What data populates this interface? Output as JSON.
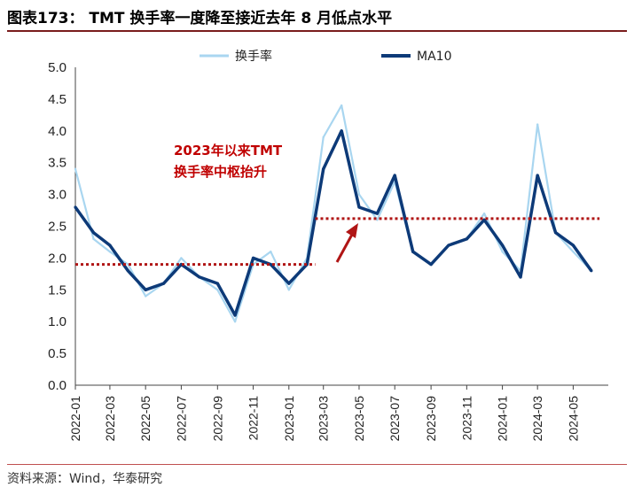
{
  "header": {
    "title": "图表173： TMT 换手率一度降至接近去年 8 月低点水平"
  },
  "footer": {
    "source": "资料来源：Wind，华泰研究"
  },
  "colors": {
    "raw": "#a9d6f0",
    "ma": "#0d3a78",
    "ref": "#b01515",
    "arrow": "#b01515",
    "accent": "#7a1c1c"
  },
  "chart_data": {
    "type": "line",
    "title": "",
    "xlabel": "",
    "ylabel": "",
    "ylim": [
      0.0,
      5.0
    ],
    "yticks": [
      "0.0",
      "0.5",
      "1.0",
      "1.5",
      "2.0",
      "2.5",
      "3.0",
      "3.5",
      "4.0",
      "4.5",
      "5.0"
    ],
    "xticks": [
      "2022-01",
      "2022-03",
      "2022-05",
      "2022-07",
      "2022-09",
      "2022-11",
      "2023-01",
      "2023-03",
      "2023-05",
      "2023-07",
      "2023-09",
      "2023-11",
      "2024-01",
      "2024-03",
      "2024-05"
    ],
    "legend_position": "top",
    "annotation": {
      "lines": [
        "2023年以来TMT",
        "换手率中枢抬升"
      ]
    },
    "reference_lines": [
      {
        "y": 1.9,
        "x_start": "2022-01",
        "x_end": "2023-02-15"
      },
      {
        "y": 2.62,
        "x_start": "2023-02-15",
        "x_end": "2024-06-15"
      }
    ],
    "series": [
      {
        "name": "换手率",
        "x": [
          "2022-01",
          "2022-02",
          "2022-03",
          "2022-04",
          "2022-05",
          "2022-06",
          "2022-07",
          "2022-08",
          "2022-09",
          "2022-10",
          "2022-11",
          "2022-12",
          "2023-01",
          "2023-02",
          "2023-03",
          "2023-04",
          "2023-05",
          "2023-06",
          "2023-07",
          "2023-08",
          "2023-09",
          "2023-10",
          "2023-11",
          "2023-12",
          "2024-01",
          "2024-02",
          "2024-03",
          "2024-04",
          "2024-05",
          "2024-06"
        ],
        "values": [
          3.4,
          2.3,
          2.1,
          1.9,
          1.4,
          1.6,
          2.0,
          1.7,
          1.5,
          1.0,
          1.9,
          2.1,
          1.5,
          2.0,
          3.9,
          4.4,
          3.0,
          2.6,
          3.2,
          2.1,
          1.9,
          2.2,
          2.3,
          2.7,
          2.1,
          1.8,
          4.1,
          2.4,
          2.1,
          1.8
        ]
      },
      {
        "name": "MA10",
        "x": [
          "2022-01",
          "2022-02",
          "2022-03",
          "2022-04",
          "2022-05",
          "2022-06",
          "2022-07",
          "2022-08",
          "2022-09",
          "2022-10",
          "2022-11",
          "2022-12",
          "2023-01",
          "2023-02",
          "2023-03",
          "2023-04",
          "2023-05",
          "2023-06",
          "2023-07",
          "2023-08",
          "2023-09",
          "2023-10",
          "2023-11",
          "2023-12",
          "2024-01",
          "2024-02",
          "2024-03",
          "2024-04",
          "2024-05",
          "2024-06"
        ],
        "values": [
          2.8,
          2.4,
          2.2,
          1.8,
          1.5,
          1.6,
          1.9,
          1.7,
          1.6,
          1.1,
          2.0,
          1.9,
          1.6,
          1.9,
          3.4,
          4.0,
          2.8,
          2.7,
          3.3,
          2.1,
          1.9,
          2.2,
          2.3,
          2.6,
          2.2,
          1.7,
          3.3,
          2.4,
          2.2,
          1.8
        ]
      }
    ]
  }
}
